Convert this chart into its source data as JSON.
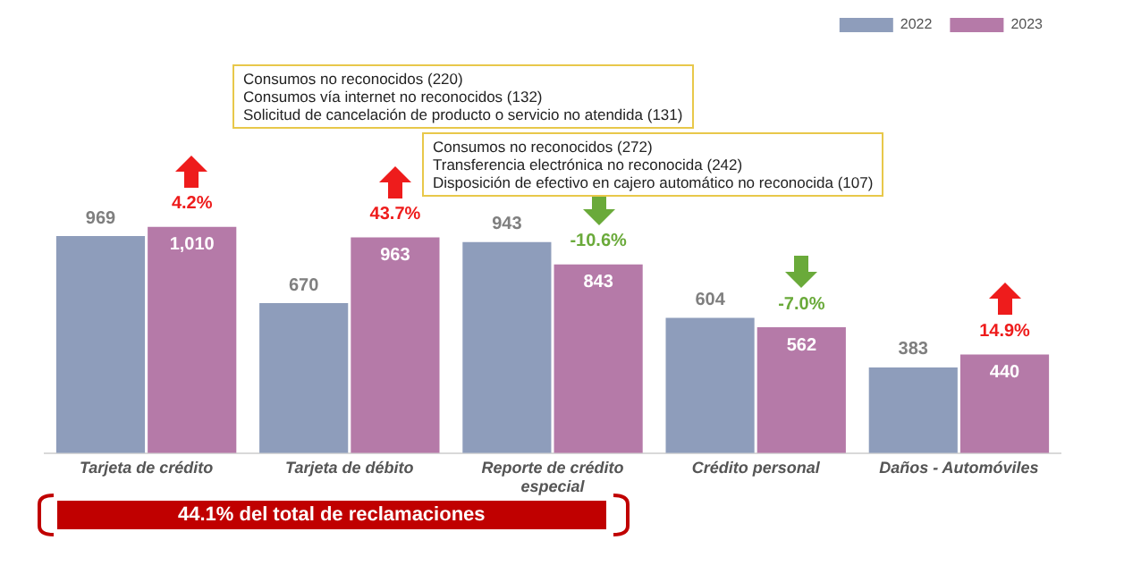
{
  "chart_data": {
    "type": "bar",
    "categories": [
      "Tarjeta de crédito",
      "Tarjeta de débito",
      "Reporte de crédito especial",
      "Crédito personal",
      "Daños - Automóviles"
    ],
    "series": [
      {
        "name": "2022",
        "color": "#8e9dbb",
        "values": [
          969,
          670,
          943,
          604,
          383
        ],
        "value_labels": [
          "969",
          "670",
          "943",
          "604",
          "383"
        ]
      },
      {
        "name": "2023",
        "color": "#b57aa8",
        "values": [
          1010,
          963,
          843,
          562,
          440
        ],
        "value_labels": [
          "1,010",
          "963",
          "843",
          "562",
          "440"
        ]
      }
    ],
    "tick_labels": "x",
    "grid": false,
    "legend": "top right",
    "annotations": [
      {
        "text": "4.2%",
        "x": "Tarjeta de crédito",
        "y": 1010
      },
      {
        "text": "43.7%",
        "x": "Tarjeta de débito",
        "y": 963
      },
      {
        "text": "-10.6%",
        "x": "Reporte de crédito especial",
        "y": 843
      },
      {
        "text": "-7.0%",
        "x": "Crédito personal",
        "y": 562
      },
      {
        "text": "14.9%",
        "x": "Daños - Automóviles",
        "y": 440
      },
      "Consumos no reconocidos (220)\nConsumos vía internet no reconocidos (132)\nSolicitud de cancelación de producto o servicio no atendida (131)",
      "Consumos no reconocidos (272)\nTransferencia electrónica no reconocida (242)\nDisposición de efectivo en cajero automático no reconocida (107)",
      "44.1% del total de reclamaciones"
    ]
  }
}
